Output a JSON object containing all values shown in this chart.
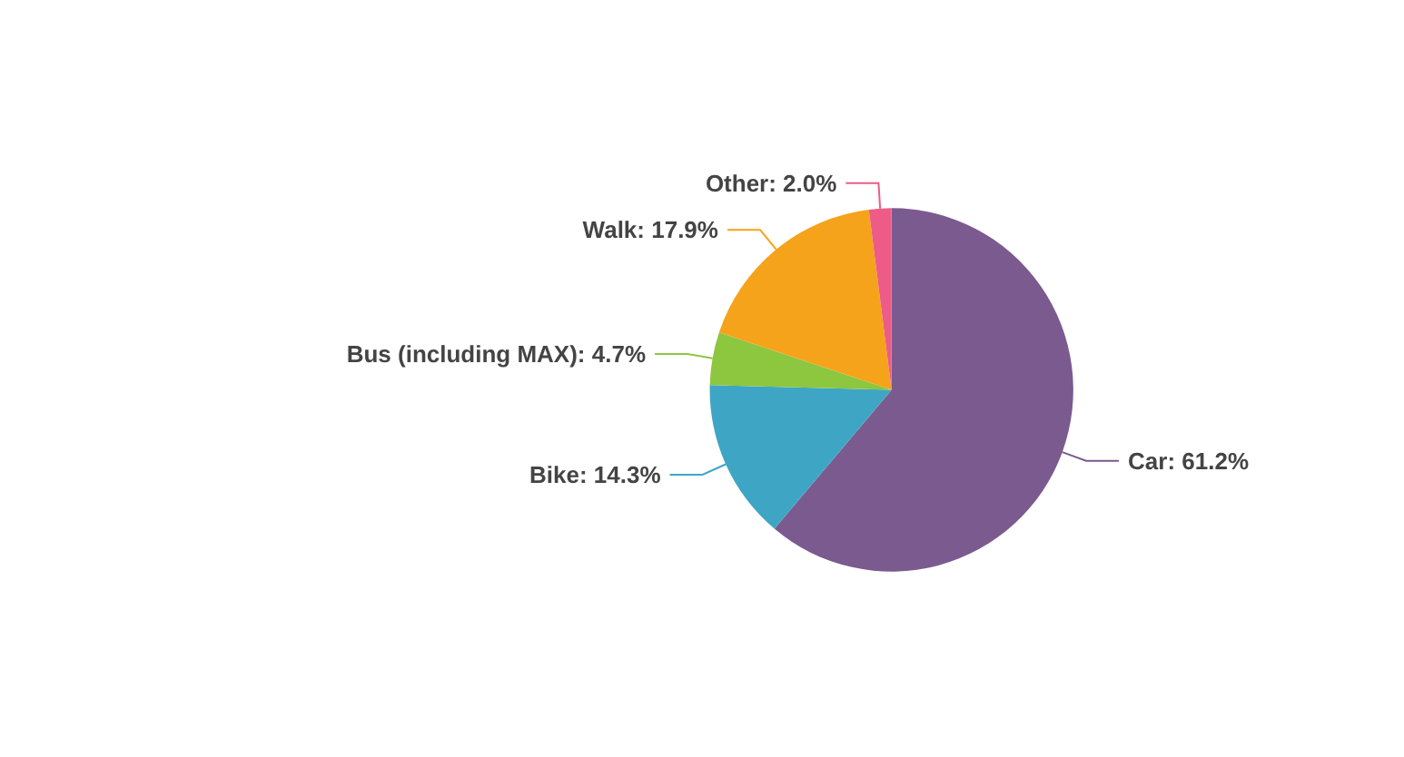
{
  "chart_data": {
    "type": "pie",
    "categories": [
      "Car",
      "Bike",
      "Bus (including MAX)",
      "Walk",
      "Other"
    ],
    "values": [
      61.2,
      14.3,
      4.7,
      17.9,
      2.0
    ],
    "value_labels": [
      "61.2%",
      "14.3%",
      "4.7%",
      "17.9%",
      "2.0%"
    ],
    "colors": [
      "#7b5a8f",
      "#3ea6c4",
      "#8dc63f",
      "#f5a31a",
      "#ec5c86"
    ],
    "legend": false
  }
}
